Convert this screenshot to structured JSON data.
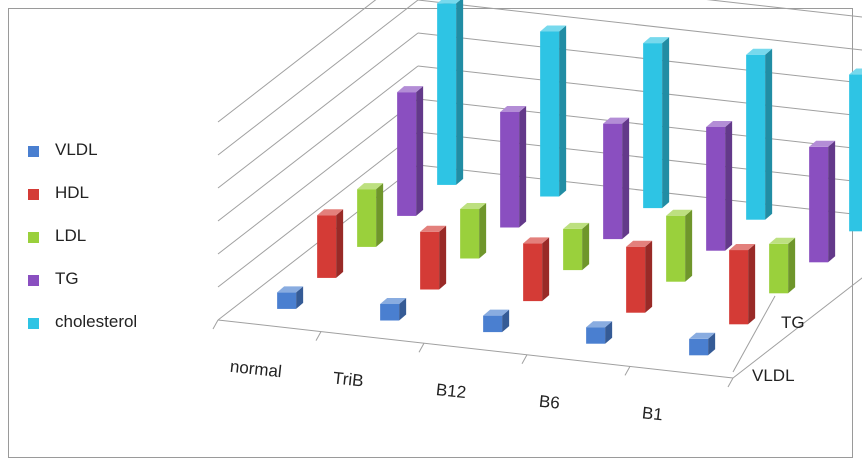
{
  "chart_data": {
    "type": "bar",
    "subtype": "3d-column",
    "categories": [
      "normal",
      "TriB",
      "B12",
      "B6",
      "B1"
    ],
    "series": [
      {
        "name": "VLDL",
        "values": [
          10,
          10,
          10,
          10,
          10
        ],
        "color": "#4a7fd0"
      },
      {
        "name": "HDL",
        "values": [
          38,
          35,
          35,
          40,
          45
        ],
        "color": "#d43b36"
      },
      {
        "name": "LDL",
        "values": [
          35,
          30,
          25,
          40,
          30
        ],
        "color": "#9ad03c"
      },
      {
        "name": "TG",
        "values": [
          75,
          70,
          70,
          75,
          70
        ],
        "color": "#8a4fc0"
      },
      {
        "name": "cholesterol",
        "values": [
          110,
          100,
          100,
          100,
          95
        ],
        "color": "#2ec4e4"
      }
    ],
    "depth_axis_labels": [
      "TG",
      "VLDL"
    ],
    "z_ticks": [
      "0",
      "20",
      "40",
      "60",
      "80",
      "100",
      "120"
    ],
    "zlim": [
      0,
      120
    ],
    "grid": true,
    "legend": "left"
  }
}
